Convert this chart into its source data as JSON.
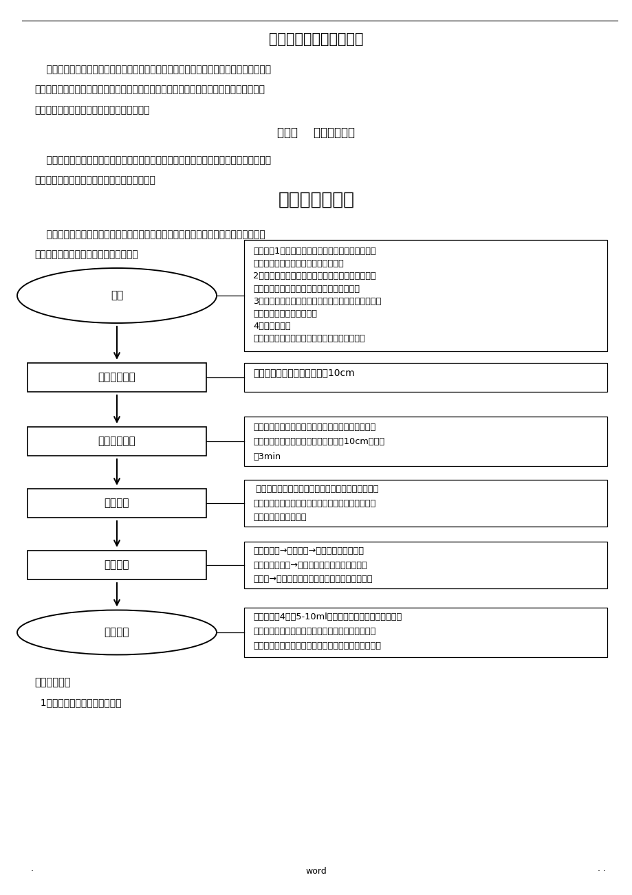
{
  "title": "手术室基本技能操作流程",
  "section1_title": "第一节    手术无菌技术",
  "section2_title": "外科手洗手流程",
  "intro_lines": [
    "    手术室护理工作具有很强的专业性，日常工作中离不开各项基本护理技能操作，手术室护",
    "士的培训应该着手于基础，只有牞固地掌握各项基本操作技能，才能熟练地配合各类手术，",
    "跟上的医学发展的步伐，更好地为病人服务。"
  ],
  "sterile_lines": [
    "    无菌技术是外科治疗的基本原则，是手术室护士的基本护理操作，是预防手术感染的关键",
    "环节之一，因此，做好无菌技术操作十分必要。"
  ],
  "scrub_lines": [
    "    所谓外科刷手是指手术人员通过刷洗和化学药物作用以祈除并杀灭手部皮肤表面上的油",
    "垄和附着的细菌，而达到消毒手的目的。"
  ],
  "flow_steps": [
    "准备",
    "初步清洁手臂",
    "彻底清洁手臂",
    "冲洗手臂",
    "擦干手臂",
    "消毒手臂"
  ],
  "note0_lines": [
    "操作者：1、着洗手衣裤，最好脱去本人衣衫，如未",
    "脱者，衣袖应卷入洗手衣内，不可外露",
    "2、戴口罩、帽子，头发、口鼻不外露。轻度上呼吸",
    "道感染者戴双层口罩，严重者不可参加手术。",
    "3、剪短指甲（水平观指腹不露指甲为度）去除饰物，",
    "双手及前臂无痖肿和破损。",
    "4、评估环境。",
    "用物：无菌洗手毛巾、肜液、消毒洗手液、时钟"
  ],
  "note1": "用清水冲洗双手、前臂、肘上10cm",
  "note2_lines": [
    "双手接取适量肜液均匀涂抑于双手和手臂上，按六部",
    "洗手法洗手，前臂上臂交叉搜洗至肘上10cm。时间",
    "约3min"
  ],
  "note3_lines": [
    " 用流动水冲去泡沫。冲洗时，双手抬高，让水由手、",
    "臂至肘部方向淋下，手不要放在最低位，避免臂部的",
    "水流向手部，造成污染"
  ],
  "note4_lines": [
    "取无菌毛巾→擦干双手→将毛巾对折成三角形",
    "搭在一侧手背面→另一只手握两角顺势向上至肘",
    "部擦干→换三角毛巾另一面，同法擦干另一侧手臂"
  ],
  "note5_lines": [
    "取消毒液剠4ｕ前5-10ml，按六部洗手法用力充分搜揉双",
    "手掌、手臂、肘部至干燥，双手合拢，至于胸前，肘",
    "部抬高外展，远离身体，迅速进入手术间，避免污染。"
  ],
  "footer1": "一、工作目标",
  "footer2": "  1、认真、仔细按流程进行洗手",
  "bg_color": "#ffffff"
}
